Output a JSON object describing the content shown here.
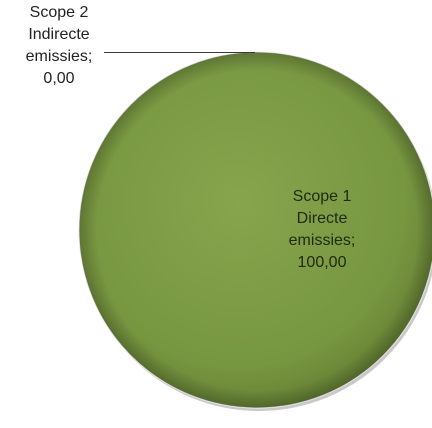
{
  "chart_data": {
    "type": "pie",
    "categories": [
      "Scope 1 Directe emissies",
      "Scope 2 Indirecte emissies"
    ],
    "values": [
      100.0,
      0.0
    ],
    "data_labels": [
      [
        "Scope 1",
        "Directe",
        "emissies;",
        "100,00"
      ],
      [
        "Scope 2",
        "Indirecte",
        "emissies;",
        "0,00"
      ]
    ],
    "colors": [
      "#7a9a43",
      "#9bbb59"
    ],
    "title": "",
    "legend": "none"
  }
}
